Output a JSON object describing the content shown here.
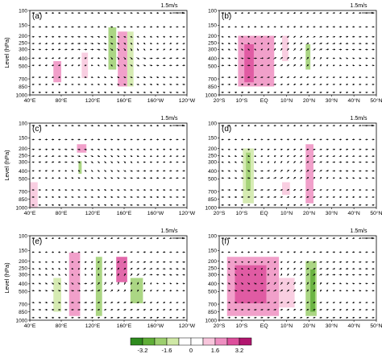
{
  "colorbar": {
    "colors": [
      "#2e8b1e",
      "#5fae37",
      "#9ccf6e",
      "#cfe8a6",
      "#ffffff",
      "#ffffff",
      "#f8c6dc",
      "#ee8fc1",
      "#dd4f9c",
      "#b2166f"
    ],
    "ticks": [
      "-3.2",
      "-1.6",
      "0",
      "1.6",
      "3.2"
    ]
  },
  "panels": [
    {
      "id": "a",
      "label": "(a)",
      "scale_label": "1.5m/s",
      "ylabel": "Level (hPa)",
      "yticks": [
        "100",
        "150",
        "200",
        "250",
        "300",
        "400",
        "500",
        "700",
        "850",
        "1000"
      ],
      "xticks": [
        "40°E",
        "80°E",
        "120°E",
        "160°E",
        "160°W",
        "120°W"
      ]
    },
    {
      "id": "b",
      "label": "(b)",
      "scale_label": "1.5m/s",
      "ylabel": "",
      "yticks": [
        "100",
        "150",
        "200",
        "250",
        "300",
        "400",
        "500",
        "700",
        "850",
        "1000"
      ],
      "xticks": [
        "20°S",
        "10°S",
        "EQ",
        "10°N",
        "20°N",
        "30°N",
        "40°N",
        "50°N"
      ]
    },
    {
      "id": "c",
      "label": "(c)",
      "scale_label": "1.5m/s",
      "ylabel": "Level (hPa)",
      "yticks": [
        "100",
        "150",
        "200",
        "250",
        "300",
        "400",
        "500",
        "700",
        "850",
        "1000"
      ],
      "xticks": [
        "40°E",
        "80°E",
        "120°E",
        "160°E",
        "160°W",
        "120°W"
      ]
    },
    {
      "id": "d",
      "label": "(d)",
      "scale_label": "1.5m/s",
      "ylabel": "",
      "yticks": [
        "100",
        "150",
        "200",
        "250",
        "300",
        "400",
        "500",
        "700",
        "850",
        "1000"
      ],
      "xticks": [
        "20°S",
        "10°S",
        "EQ",
        "10°N",
        "20°N",
        "30°N",
        "40°N",
        "50°N"
      ]
    },
    {
      "id": "e",
      "label": "(e)",
      "scale_label": "1.5m/s",
      "ylabel": "Level (hPa)",
      "yticks": [
        "100",
        "150",
        "200",
        "250",
        "300",
        "400",
        "500",
        "700",
        "850",
        "1000"
      ],
      "xticks": [
        "40°E",
        "80°E",
        "120°E",
        "160°E",
        "160°W",
        "120°W"
      ]
    },
    {
      "id": "f",
      "label": "(f)",
      "scale_label": "1.5m/s",
      "ylabel": "",
      "yticks": [
        "100",
        "150",
        "200",
        "250",
        "300",
        "400",
        "500",
        "700",
        "850",
        "1000"
      ],
      "xticks": [
        "20°S",
        "10°S",
        "EQ",
        "10°N",
        "20°N",
        "30°N",
        "40°N",
        "50°N"
      ]
    }
  ],
  "chart_data": {
    "type": "heatmap",
    "levels_hPa": [
      100,
      150,
      200,
      250,
      300,
      400,
      500,
      700,
      850,
      1000
    ],
    "colorbar_range": [
      -3.2,
      3.2
    ],
    "panels": [
      {
        "id": "a",
        "x_axis": "longitude",
        "xlim": [
          "40°E",
          "120°W"
        ],
        "vector_scale": "1.5m/s"
      },
      {
        "id": "b",
        "x_axis": "latitude",
        "xlim": [
          "20°S",
          "50°N"
        ],
        "vector_scale": "1.5m/s"
      },
      {
        "id": "c",
        "x_axis": "longitude",
        "xlim": [
          "40°E",
          "120°W"
        ],
        "vector_scale": "1.5m/s"
      },
      {
        "id": "d",
        "x_axis": "latitude",
        "xlim": [
          "20°S",
          "50°N"
        ],
        "vector_scale": "1.5m/s"
      },
      {
        "id": "e",
        "x_axis": "longitude",
        "xlim": [
          "40°E",
          "120°W"
        ],
        "vector_scale": "1.5m/s"
      },
      {
        "id": "f",
        "x_axis": "latitude",
        "xlim": [
          "20°S",
          "50°N"
        ],
        "vector_scale": "1.5m/s"
      }
    ]
  }
}
